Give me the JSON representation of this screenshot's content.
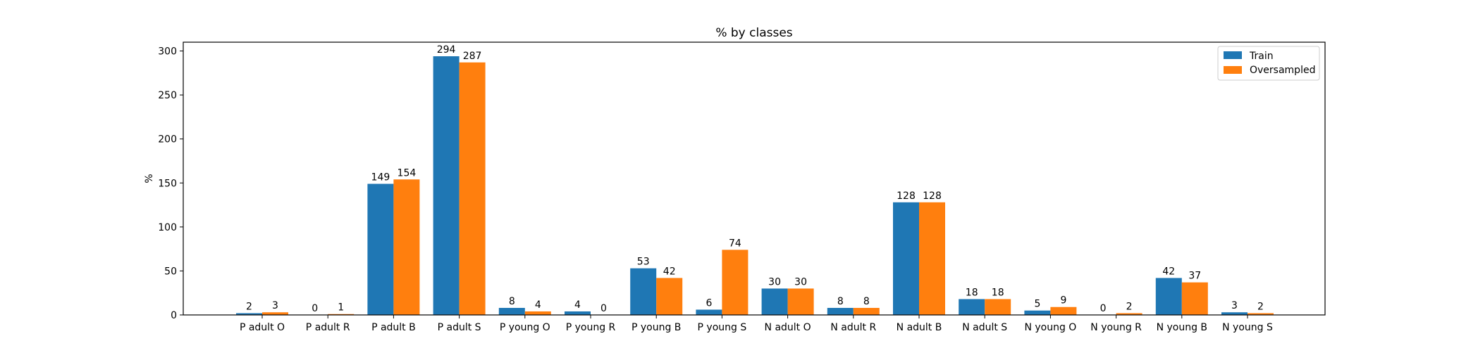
{
  "chart_data": {
    "type": "bar",
    "title": "% by classes",
    "xlabel": "",
    "ylabel": "%",
    "ylim": [
      0,
      310
    ],
    "yticks": [
      0,
      50,
      100,
      150,
      200,
      250,
      300
    ],
    "grid": false,
    "legend_position": "top-right",
    "categories": [
      "P adult O",
      "P adult R",
      "P adult B",
      "P adult S",
      "P young O",
      "P young R",
      "P young B",
      "P young S",
      "N adult O",
      "N adult R",
      "N adult B",
      "N adult S",
      "N young O",
      "N young R",
      "N young B",
      "N young S"
    ],
    "series": [
      {
        "name": "Train",
        "color": "#1f77b4",
        "values": [
          2,
          0,
          149,
          294,
          8,
          4,
          53,
          6,
          30,
          8,
          128,
          18,
          5,
          0,
          42,
          3
        ]
      },
      {
        "name": "Oversampled",
        "color": "#ff7f0e",
        "values": [
          3,
          1,
          154,
          287,
          4,
          0,
          42,
          74,
          30,
          8,
          128,
          18,
          9,
          2,
          37,
          2
        ]
      }
    ]
  }
}
